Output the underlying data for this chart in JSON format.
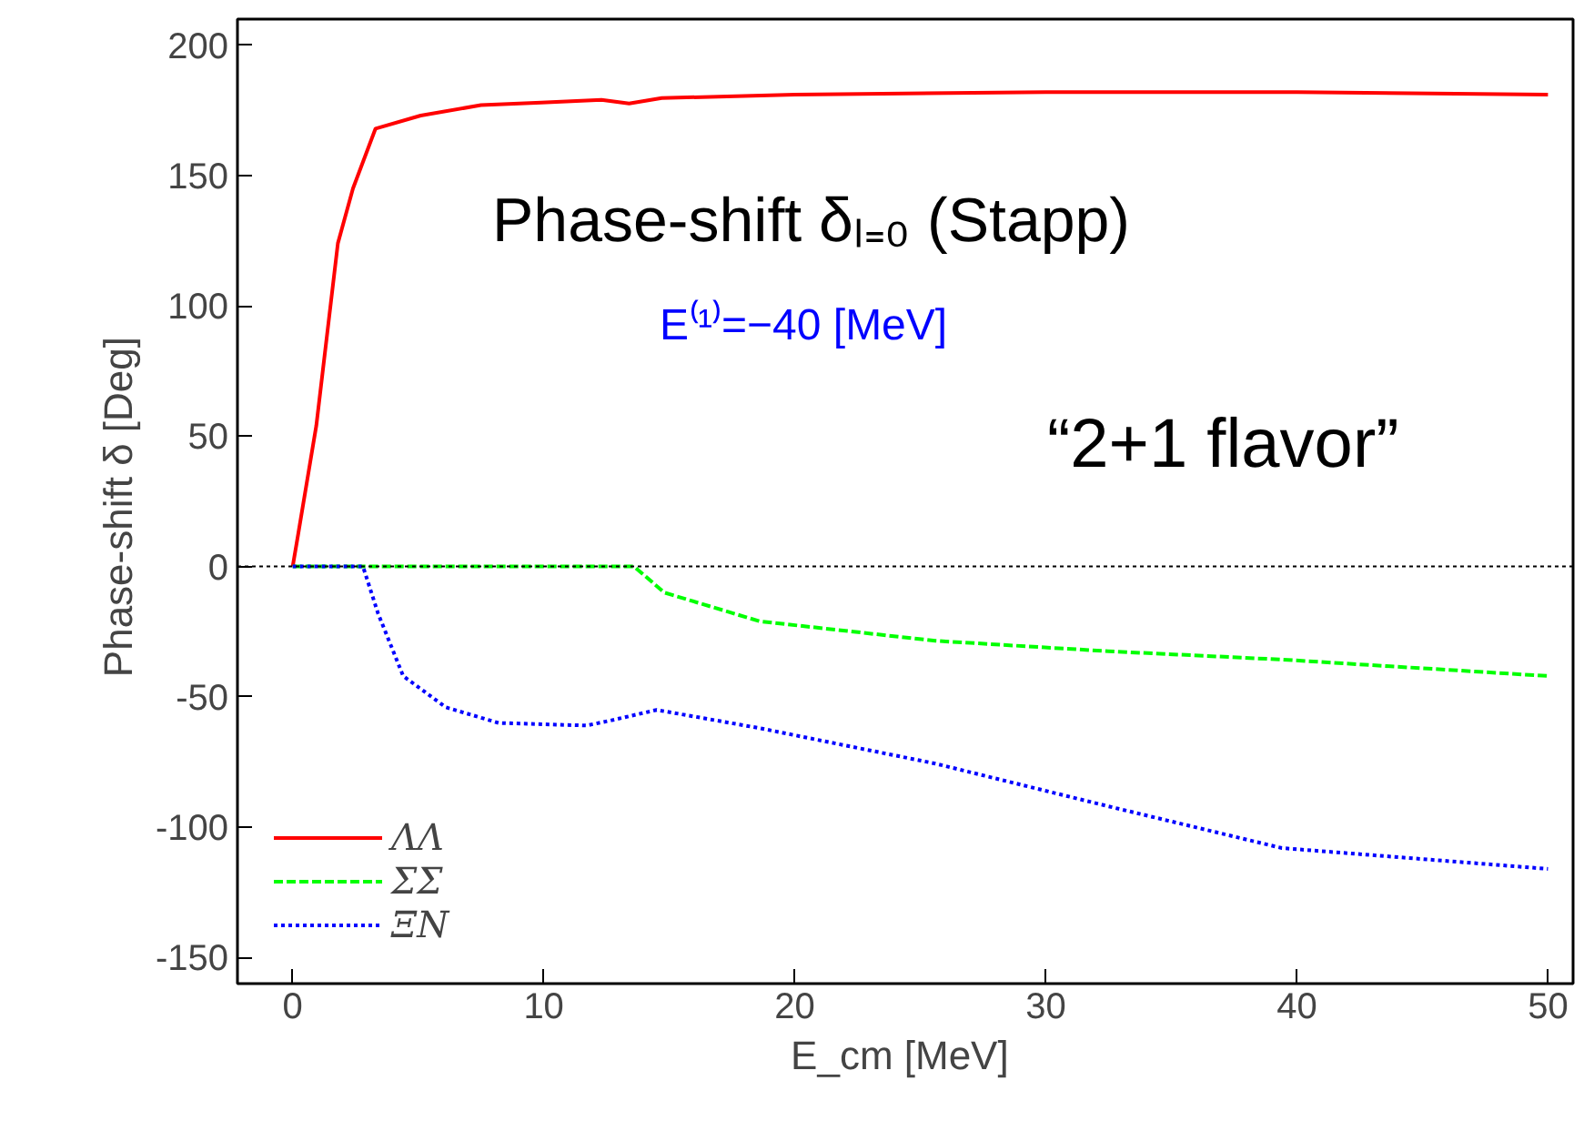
{
  "chart_data": {
    "type": "line",
    "xlabel": "E_cm  [MeV]",
    "ylabel": "Phase-shift δ  [Deg]",
    "annotations": [
      "Phase-shift δₗ₌₀   (Stapp)",
      "E⁽¹⁾=−40 [MeV]",
      "“2+1 flavor”"
    ],
    "xlim": [
      -2.2,
      51
    ],
    "ylim": [
      -160,
      210
    ],
    "xticks": [
      0,
      10,
      20,
      30,
      40,
      50
    ],
    "yticks": [
      -150,
      -100,
      -50,
      0,
      50,
      100,
      150,
      200
    ],
    "grid": false,
    "legend": "bottom left",
    "marker": "none",
    "ref_lines": [
      {
        "axis": "y",
        "value": 0,
        "color": "#000000",
        "line_style": "dotted"
      }
    ],
    "series": [
      {
        "name": "ΛΛ",
        "color": "#ff0000",
        "line_style": "solid",
        "x": [
          0,
          0.22,
          0.94,
          1.8,
          2.4,
          3.3,
          5.1,
          7.5,
          9.9,
          12.3,
          13.4,
          14.7,
          20,
          30,
          40,
          50
        ],
        "values": [
          0,
          12.5,
          54,
          124,
          145,
          168,
          173,
          177,
          178,
          179,
          177.6,
          179.7,
          181,
          182,
          182,
          181
        ]
      },
      {
        "name": "ΣΣ",
        "color": "#00ff00",
        "line_style": "dashed",
        "x": [
          0,
          13.6,
          14.8,
          18.6,
          25.6,
          32.5,
          39.4,
          50
        ],
        "values": [
          0,
          0,
          -10,
          -21,
          -28.5,
          -32.5,
          -35.7,
          -42
        ]
      },
      {
        "name": "ΞN",
        "color": "#0000ff",
        "line_style": "dotted",
        "x": [
          0,
          2.8,
          3.4,
          4.4,
          6.1,
          8.2,
          11.7,
          12.7,
          14.5,
          18.6,
          25.6,
          32.5,
          39.4,
          50
        ],
        "values": [
          0,
          0,
          -18,
          -42,
          -54,
          -60,
          -61,
          -59,
          -55,
          -62,
          -75.6,
          -92,
          -108,
          -116
        ]
      }
    ]
  }
}
